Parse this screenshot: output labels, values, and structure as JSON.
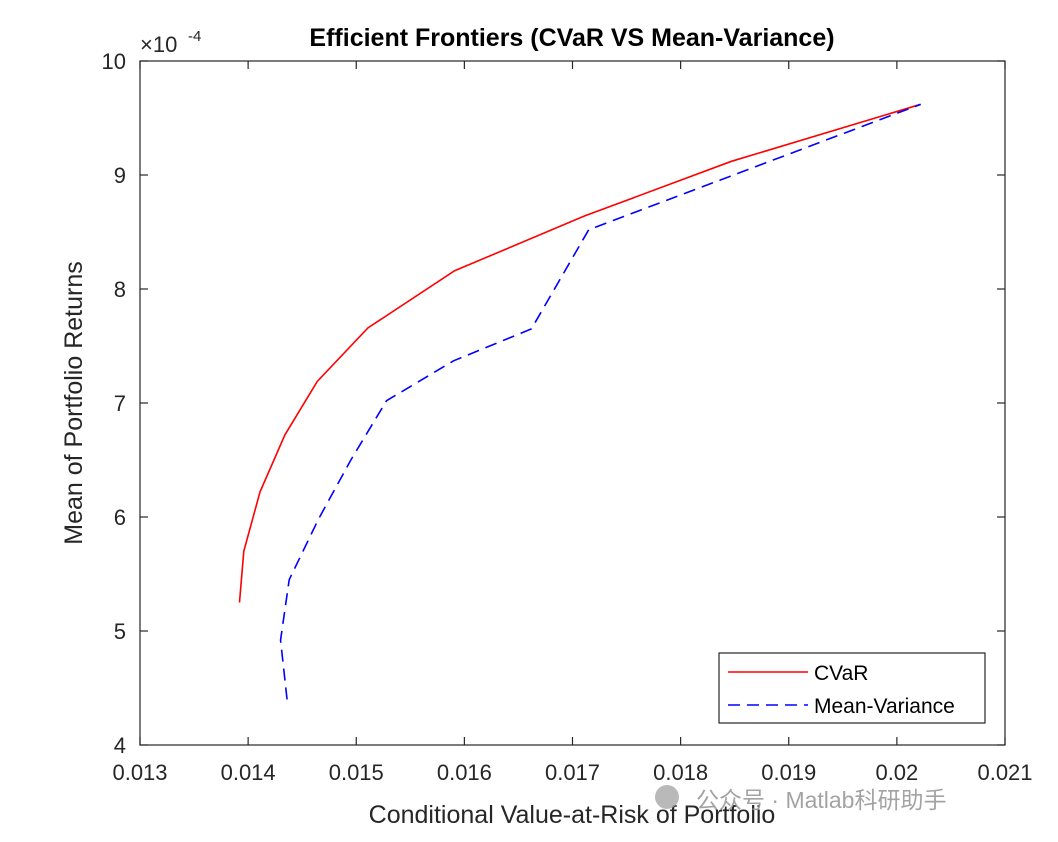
{
  "chart_data": {
    "type": "line",
    "title": "Efficient Frontiers (CVaR VS Mean-Variance)",
    "xlabel": "Conditional Value-at-Risk of Portfolio",
    "ylabel": "Mean of Portfolio Returns",
    "y_exponent_label": "×10",
    "y_exponent_power": "-4",
    "xlim": [
      0.013,
      0.021
    ],
    "ylim": [
      4,
      10
    ],
    "x_ticks": [
      0.013,
      0.014,
      0.015,
      0.016,
      0.017,
      0.018,
      0.019,
      0.02,
      0.021
    ],
    "x_tick_labels": [
      "0.013",
      "0.014",
      "0.015",
      "0.016",
      "0.017",
      "0.018",
      "0.019",
      "0.02",
      "0.021"
    ],
    "y_ticks": [
      4,
      5,
      6,
      7,
      8,
      9,
      10
    ],
    "y_tick_labels": [
      "4",
      "5",
      "6",
      "7",
      "8",
      "9",
      "10"
    ],
    "grid": false,
    "legend_position": "bottom-right",
    "series": [
      {
        "name": "CVaR",
        "color": "#ff0000",
        "style": "solid",
        "x": [
          0.01392,
          0.01396,
          0.01411,
          0.01434,
          0.01464,
          0.01511,
          0.01591,
          0.01711,
          0.01847,
          0.02022
        ],
        "y": [
          5.25,
          5.7,
          6.22,
          6.72,
          7.19,
          7.66,
          8.16,
          8.64,
          9.12,
          9.62
        ]
      },
      {
        "name": "Mean-Variance",
        "color": "#0000ff",
        "style": "dashed",
        "x": [
          0.01436,
          0.0143,
          0.01438,
          0.01465,
          0.01495,
          0.01528,
          0.0159,
          0.01662,
          0.01715,
          0.02022
        ],
        "y": [
          4.4,
          4.92,
          5.45,
          5.98,
          6.5,
          7.02,
          7.37,
          7.65,
          8.52,
          9.62
        ]
      }
    ]
  },
  "watermark": {
    "text": "公众号 · Matlab科研助手"
  }
}
